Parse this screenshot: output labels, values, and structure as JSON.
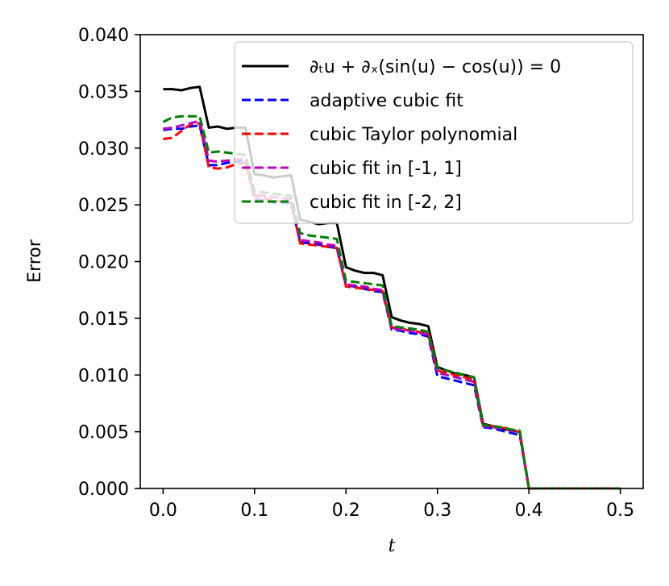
{
  "chart_data": {
    "type": "line",
    "xlabel": "t",
    "ylabel": "Error",
    "xlim": [
      -0.025,
      0.525
    ],
    "ylim": [
      0.0,
      0.04
    ],
    "x_ticks": [
      0.0,
      0.1,
      0.2,
      0.3,
      0.4,
      0.5
    ],
    "x_tick_labels": [
      "0.0",
      "0.1",
      "0.2",
      "0.3",
      "0.4",
      "0.5"
    ],
    "y_ticks": [
      0.0,
      0.005,
      0.01,
      0.015,
      0.02,
      0.025,
      0.03,
      0.035,
      0.04
    ],
    "y_tick_labels": [
      "0.000",
      "0.005",
      "0.010",
      "0.015",
      "0.020",
      "0.025",
      "0.030",
      "0.035",
      "0.040"
    ],
    "grid": false,
    "legend_position": "top-right",
    "series": [
      {
        "name": "∂ₜu + ∂ₓ(sin(u) − cos(u)) = 0",
        "color": "#000000",
        "dash": "solid",
        "x": [
          0.0,
          0.01,
          0.02,
          0.03,
          0.04,
          0.05,
          0.06,
          0.07,
          0.08,
          0.09,
          0.1,
          0.11,
          0.12,
          0.13,
          0.14,
          0.15,
          0.16,
          0.17,
          0.18,
          0.19,
          0.2,
          0.21,
          0.22,
          0.23,
          0.24,
          0.25,
          0.26,
          0.27,
          0.28,
          0.29,
          0.3,
          0.31,
          0.32,
          0.33,
          0.34,
          0.35,
          0.36,
          0.37,
          0.38,
          0.39,
          0.4,
          0.5
        ],
        "y": [
          0.0352,
          0.0352,
          0.0351,
          0.0353,
          0.0354,
          0.0318,
          0.0319,
          0.0317,
          0.0318,
          0.0318,
          0.0277,
          0.0276,
          0.0274,
          0.0275,
          0.0276,
          0.0237,
          0.0235,
          0.0233,
          0.0234,
          0.0234,
          0.0195,
          0.0192,
          0.019,
          0.019,
          0.0188,
          0.0151,
          0.0148,
          0.0146,
          0.0145,
          0.0143,
          0.0107,
          0.0104,
          0.0101,
          0.01,
          0.0098,
          0.0057,
          0.0055,
          0.0053,
          0.0051,
          0.005,
          0.0,
          0.0
        ]
      },
      {
        "name": "adaptive cubic fit",
        "color": "#0000ff",
        "dash": "dashed",
        "x": [
          0.0,
          0.01,
          0.02,
          0.03,
          0.04,
          0.05,
          0.06,
          0.07,
          0.08,
          0.09,
          0.1,
          0.11,
          0.12,
          0.13,
          0.14,
          0.15,
          0.16,
          0.17,
          0.18,
          0.19,
          0.2,
          0.21,
          0.22,
          0.23,
          0.24,
          0.25,
          0.26,
          0.27,
          0.28,
          0.29,
          0.3,
          0.31,
          0.32,
          0.33,
          0.34,
          0.35,
          0.36,
          0.37,
          0.38,
          0.39,
          0.4,
          0.5
        ],
        "y": [
          0.0316,
          0.0317,
          0.0317,
          0.0319,
          0.032,
          0.0285,
          0.0285,
          0.0287,
          0.0288,
          0.0289,
          0.0255,
          0.0254,
          0.0252,
          0.0252,
          0.0251,
          0.0217,
          0.0216,
          0.0215,
          0.0213,
          0.0212,
          0.0179,
          0.0178,
          0.0176,
          0.0174,
          0.0173,
          0.014,
          0.0139,
          0.0137,
          0.0136,
          0.0134,
          0.0099,
          0.0097,
          0.0095,
          0.0093,
          0.0091,
          0.0054,
          0.0053,
          0.0051,
          0.0049,
          0.0047,
          0.0,
          0.0
        ]
      },
      {
        "name": "cubic Taylor polynomial",
        "color": "#ff0000",
        "dash": "dashed",
        "x": [
          0.0,
          0.01,
          0.02,
          0.03,
          0.04,
          0.05,
          0.06,
          0.07,
          0.08,
          0.09,
          0.1,
          0.11,
          0.12,
          0.13,
          0.14,
          0.15,
          0.16,
          0.17,
          0.18,
          0.19,
          0.2,
          0.21,
          0.22,
          0.23,
          0.24,
          0.25,
          0.26,
          0.27,
          0.28,
          0.29,
          0.3,
          0.31,
          0.32,
          0.33,
          0.34,
          0.35,
          0.36,
          0.37,
          0.38,
          0.39,
          0.4,
          0.5
        ],
        "y": [
          0.0308,
          0.0309,
          0.0315,
          0.0321,
          0.0322,
          0.0283,
          0.0282,
          0.0283,
          0.0286,
          0.0287,
          0.0258,
          0.0256,
          0.0254,
          0.0253,
          0.0252,
          0.0216,
          0.0215,
          0.0214,
          0.0213,
          0.0212,
          0.0178,
          0.0177,
          0.0176,
          0.0175,
          0.0174,
          0.0142,
          0.0141,
          0.0139,
          0.0138,
          0.0137,
          0.0104,
          0.0102,
          0.01,
          0.0098,
          0.0096,
          0.0056,
          0.0055,
          0.0054,
          0.0052,
          0.005,
          0.0,
          0.0
        ]
      },
      {
        "name": "cubic fit in [-1, 1]",
        "color": "#bf00bf",
        "dash": "dashed",
        "x": [
          0.0,
          0.01,
          0.02,
          0.03,
          0.04,
          0.05,
          0.06,
          0.07,
          0.08,
          0.09,
          0.1,
          0.11,
          0.12,
          0.13,
          0.14,
          0.15,
          0.16,
          0.17,
          0.18,
          0.19,
          0.2,
          0.21,
          0.22,
          0.23,
          0.24,
          0.25,
          0.26,
          0.27,
          0.28,
          0.29,
          0.3,
          0.31,
          0.32,
          0.33,
          0.34,
          0.35,
          0.36,
          0.37,
          0.38,
          0.39,
          0.4,
          0.5
        ],
        "y": [
          0.0317,
          0.0318,
          0.032,
          0.0322,
          0.0324,
          0.0289,
          0.0288,
          0.0289,
          0.029,
          0.0291,
          0.0259,
          0.0258,
          0.0257,
          0.0256,
          0.0255,
          0.0219,
          0.0218,
          0.0217,
          0.0215,
          0.0214,
          0.018,
          0.0179,
          0.0178,
          0.0176,
          0.0175,
          0.0141,
          0.014,
          0.0139,
          0.0137,
          0.0136,
          0.0102,
          0.01,
          0.0098,
          0.0096,
          0.0094,
          0.0055,
          0.0054,
          0.0053,
          0.0051,
          0.0049,
          0.0,
          0.0
        ]
      },
      {
        "name": "cubic fit in [-2, 2]",
        "color": "#008000",
        "dash": "dashed",
        "x": [
          0.0,
          0.01,
          0.02,
          0.03,
          0.04,
          0.05,
          0.06,
          0.07,
          0.08,
          0.09,
          0.1,
          0.11,
          0.12,
          0.13,
          0.14,
          0.15,
          0.16,
          0.17,
          0.18,
          0.19,
          0.2,
          0.21,
          0.22,
          0.23,
          0.24,
          0.25,
          0.26,
          0.27,
          0.28,
          0.29,
          0.3,
          0.31,
          0.32,
          0.33,
          0.34,
          0.35,
          0.36,
          0.37,
          0.38,
          0.39,
          0.4,
          0.5
        ],
        "y": [
          0.0323,
          0.0327,
          0.0328,
          0.0328,
          0.0328,
          0.0296,
          0.0297,
          0.0296,
          0.0295,
          0.0294,
          0.0262,
          0.0261,
          0.026,
          0.0259,
          0.0258,
          0.0225,
          0.0223,
          0.0222,
          0.0221,
          0.022,
          0.0183,
          0.0182,
          0.0181,
          0.018,
          0.0179,
          0.0143,
          0.0142,
          0.0141,
          0.014,
          0.0138,
          0.0106,
          0.0104,
          0.0102,
          0.01,
          0.0098,
          0.0056,
          0.0055,
          0.0054,
          0.0052,
          0.0051,
          0.0,
          0.0
        ]
      }
    ]
  }
}
